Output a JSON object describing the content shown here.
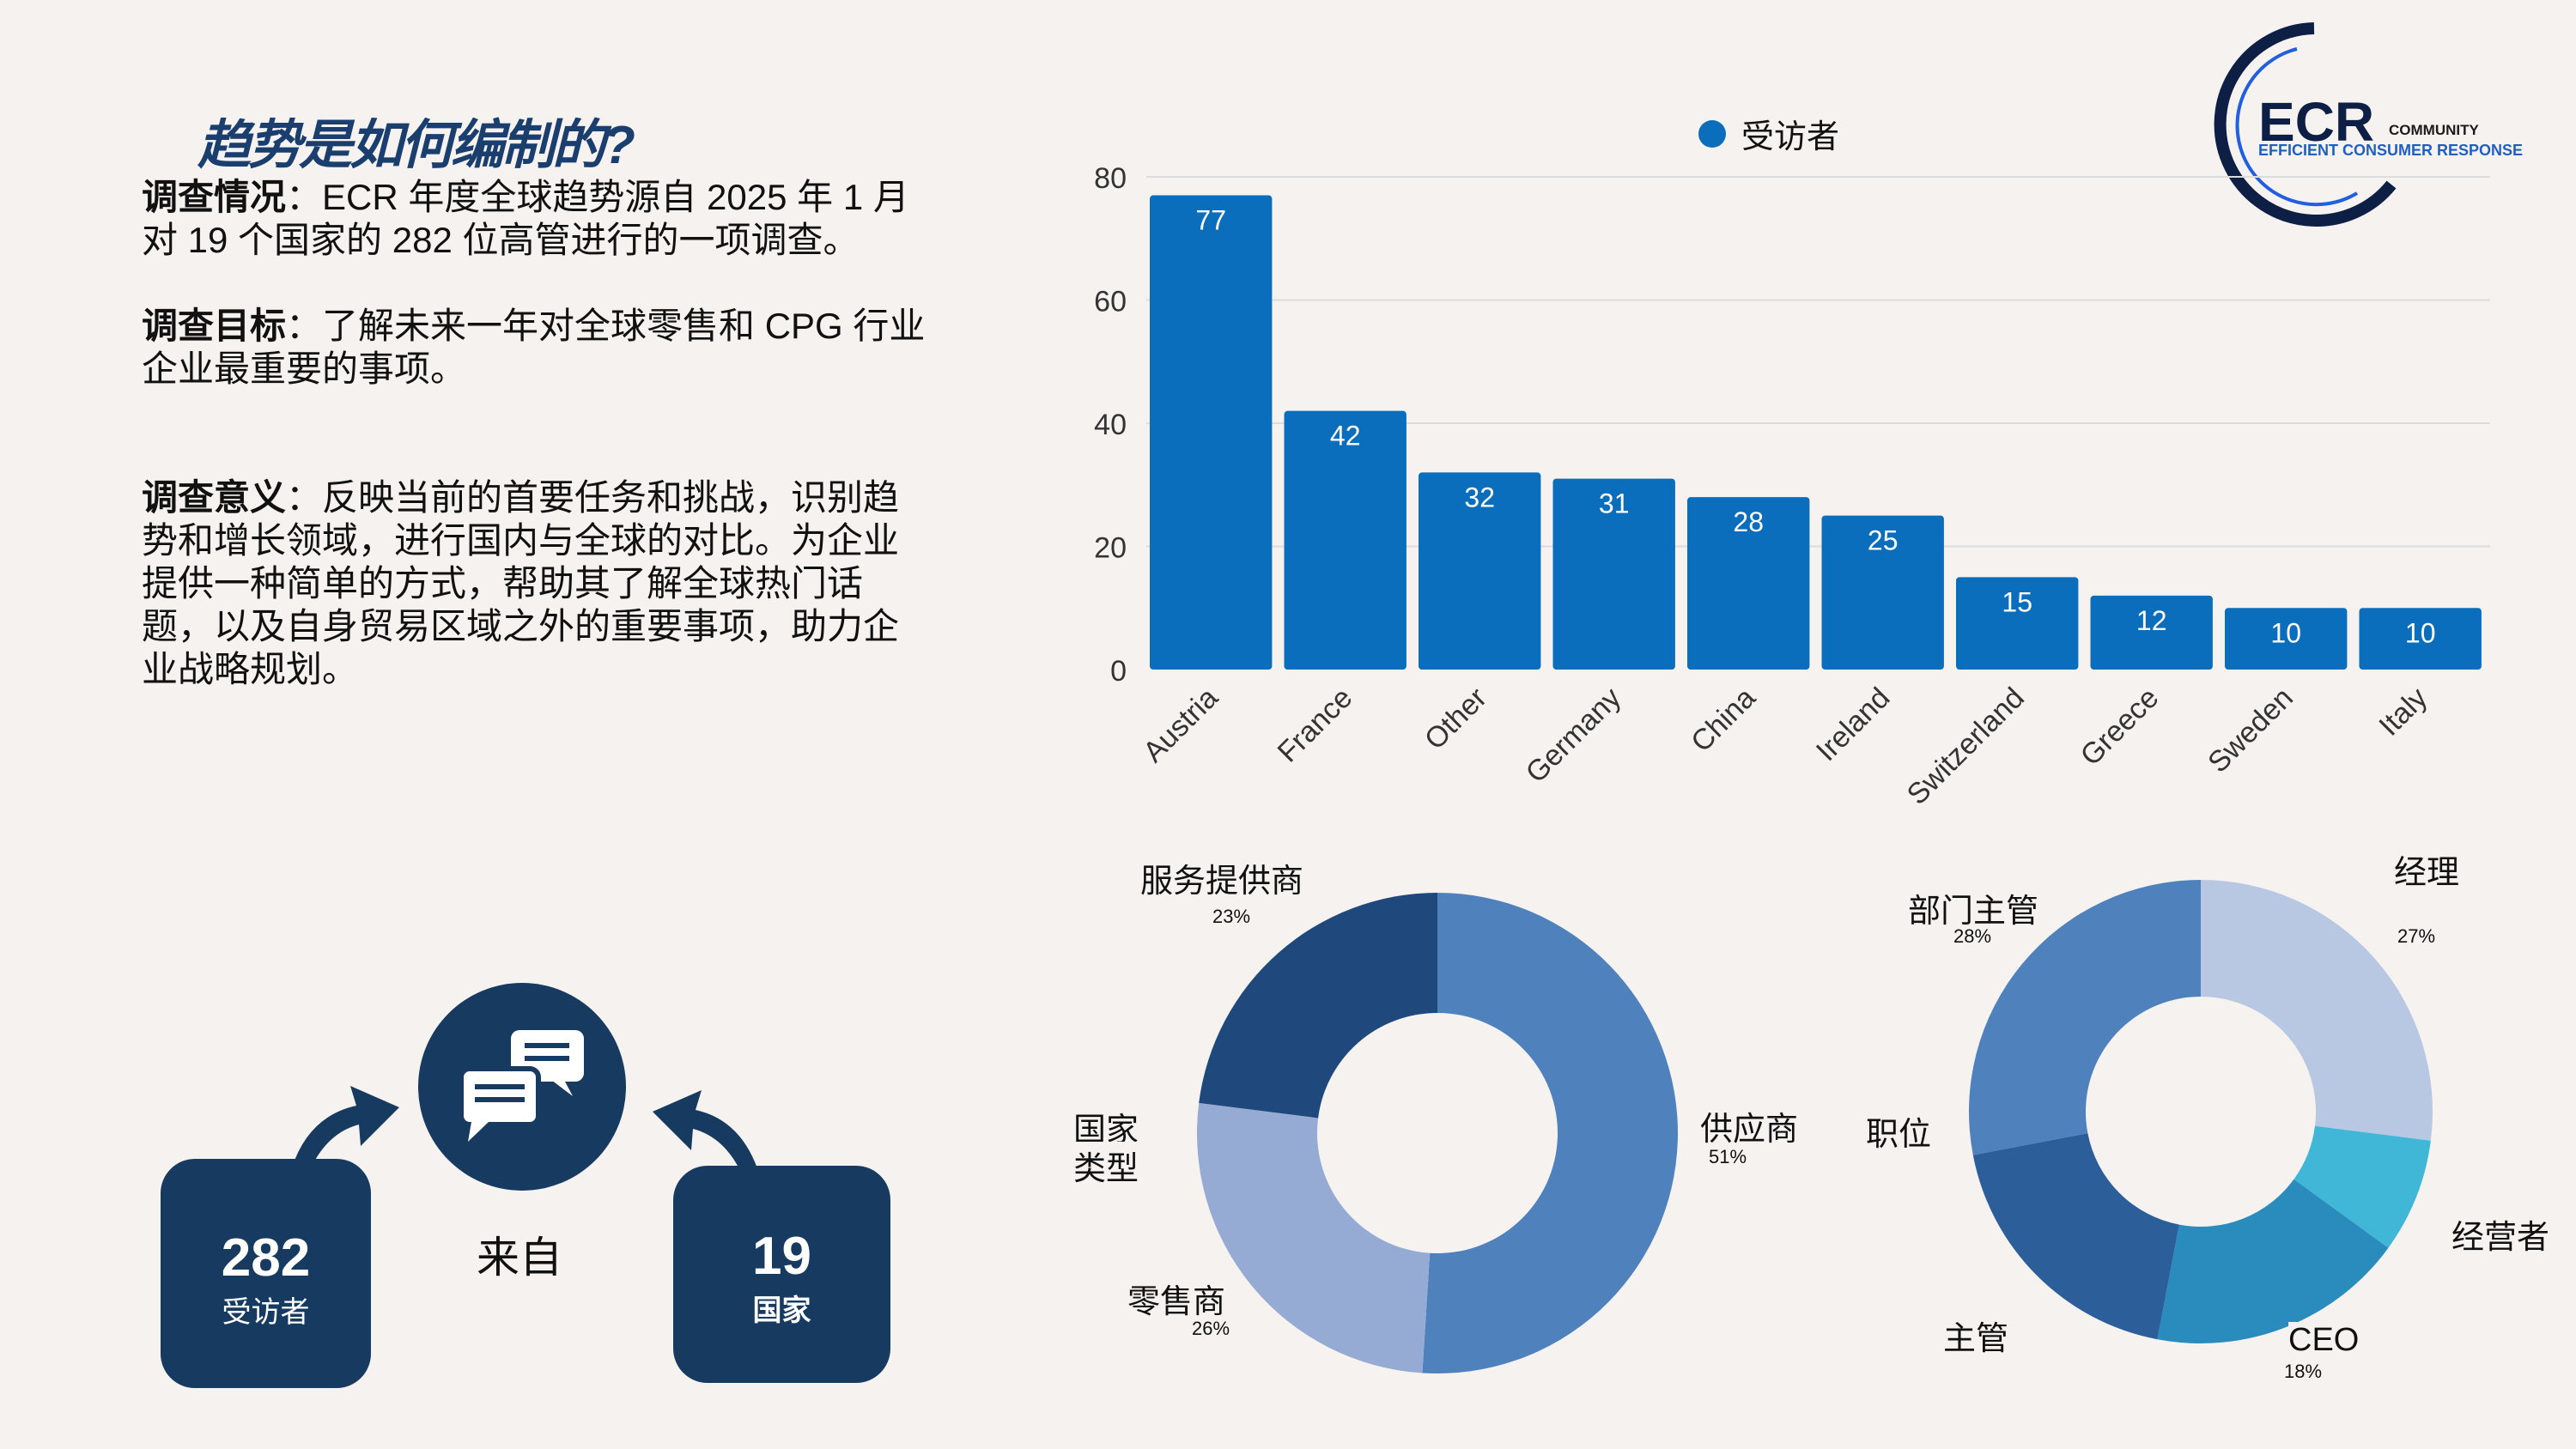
{
  "title": "趋势是如何编制的?",
  "sections": [
    {
      "label": "调查情况",
      "sep": "：",
      "text": "ECR 年度全球趋势源自 2025 年 1 月对 19 个国家的 282 位高管进行的一项调查。"
    },
    {
      "label": "调查目标",
      "sep": "：",
      "text": "了解未来一年对全球零售和 CPG 行业企业最重要的事项。"
    },
    {
      "label": "调查意义",
      "sep": "：",
      "text": "反映当前的首要任务和挑战，识别趋势和增长领域，进行国内与全球的对比。为企业提供一种简单的方式，帮助其了解全球热门话题，以及自身贸易区域之外的重要事项，助力企业战略规划。"
    }
  ],
  "logo": {
    "main": "ECR",
    "sub": "COMMUNITY",
    "tagline": "EFFICIENT CONSUMER RESPONSE"
  },
  "stats": {
    "respondents_value": "282",
    "respondents_label": "受访者",
    "from_label": "来自",
    "countries_value": "19",
    "countries_label": "国家",
    "icon": "chat-bubbles-icon"
  },
  "chart_data": [
    {
      "type": "bar",
      "legend": "受访者",
      "legend_position": "top",
      "color": "#0b6ebd",
      "ylim": [
        0,
        80
      ],
      "yticks": [
        0,
        20,
        40,
        60,
        80
      ],
      "grid": true,
      "categories": [
        "Austria",
        "France",
        "Other",
        "Germany",
        "China",
        "Ireland",
        "Switzerland",
        "Greece",
        "Sweden",
        "Italy"
      ],
      "values": [
        77,
        42,
        32,
        31,
        28,
        25,
        15,
        12,
        10,
        10
      ]
    },
    {
      "type": "pie",
      "donut": true,
      "center_label": "国家\n类型",
      "center_label_lines": [
        "国家",
        "类型"
      ],
      "slices": [
        {
          "label": "供应商",
          "value": 51,
          "pct": "51%",
          "color": "#4f81bd"
        },
        {
          "label": "零售商",
          "value": 26,
          "pct": "26%",
          "color": "#95abd3"
        },
        {
          "label": "服务提供商",
          "value": 23,
          "pct": "23%",
          "color": "#1f497d"
        }
      ]
    },
    {
      "type": "pie",
      "donut": true,
      "center_label": "职位",
      "slices": [
        {
          "label": "经理",
          "value": 27,
          "pct": "27%",
          "color": "#b9c8e2"
        },
        {
          "label": "经营者",
          "value": 8,
          "color": "#41b7d8"
        },
        {
          "label": "CEO",
          "value": 18,
          "pct": "18%",
          "color": "#2a8bbd"
        },
        {
          "label": "主管",
          "value": 19,
          "color": "#2c5f9a"
        },
        {
          "label": "部门主管",
          "value": 28,
          "pct": "28%",
          "color": "#4f81bd"
        }
      ]
    }
  ]
}
